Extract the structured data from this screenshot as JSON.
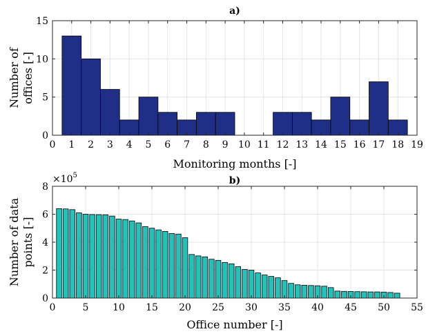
{
  "chart_data": [
    {
      "type": "bar",
      "title": "a)",
      "xlabel": "Monitoring months [-]",
      "ylabel": "Number of offices [-]",
      "ylabel_lines": [
        "Number of",
        "offices [-]"
      ],
      "x": [
        1,
        2,
        3,
        4,
        5,
        6,
        7,
        8,
        9,
        10,
        11,
        12,
        13,
        14,
        15,
        16,
        17,
        18
      ],
      "values": [
        13,
        10,
        6,
        2,
        5,
        3,
        2,
        3,
        3,
        0,
        0,
        3,
        3,
        2,
        5,
        2,
        7,
        2
      ],
      "xlim": [
        0,
        19
      ],
      "ylim": [
        0,
        15
      ],
      "xticks": [
        0,
        1,
        2,
        3,
        4,
        5,
        6,
        7,
        8,
        9,
        10,
        11,
        12,
        13,
        14,
        15,
        16,
        17,
        18,
        19
      ],
      "yticks": [
        0,
        5,
        10,
        15
      ],
      "bar_color": "#1f2f87",
      "grid": true
    },
    {
      "type": "bar",
      "title": "b)",
      "xlabel": "Office number [-]",
      "ylabel": "Number of data points [-]",
      "ylabel_lines": [
        "Number of data",
        "points [-]"
      ],
      "y_multiplier_base": "×10",
      "y_multiplier_exp": "5",
      "x": [
        1,
        2,
        3,
        4,
        5,
        6,
        7,
        8,
        9,
        10,
        11,
        12,
        13,
        14,
        15,
        16,
        17,
        18,
        19,
        20,
        21,
        22,
        23,
        24,
        25,
        26,
        27,
        28,
        29,
        30,
        31,
        32,
        33,
        34,
        35,
        36,
        37,
        38,
        39,
        40,
        41,
        42,
        43,
        44,
        45,
        46,
        47,
        48,
        49,
        50,
        51,
        52
      ],
      "values": [
        640000,
        638000,
        633000,
        610000,
        600000,
        598000,
        597000,
        596000,
        587000,
        565000,
        562000,
        552000,
        538000,
        512000,
        500000,
        488000,
        477000,
        462000,
        458000,
        432000,
        312000,
        302000,
        295000,
        278000,
        270000,
        255000,
        245000,
        225000,
        205000,
        200000,
        180000,
        165000,
        155000,
        145000,
        125000,
        105000,
        95000,
        92000,
        90000,
        88000,
        85000,
        75000,
        50000,
        48000,
        47000,
        46000,
        45000,
        44000,
        44000,
        43000,
        40000,
        35000
      ],
      "xlim": [
        0,
        55
      ],
      "ylim": [
        0,
        800000
      ],
      "xticks": [
        0,
        5,
        10,
        15,
        20,
        25,
        30,
        35,
        40,
        45,
        50,
        55
      ],
      "yticks": [
        0,
        200000,
        400000,
        600000,
        800000
      ],
      "ytick_labels": [
        "0",
        "2",
        "4",
        "6",
        "8"
      ],
      "bar_color": "#22c1bc",
      "grid": true
    }
  ]
}
